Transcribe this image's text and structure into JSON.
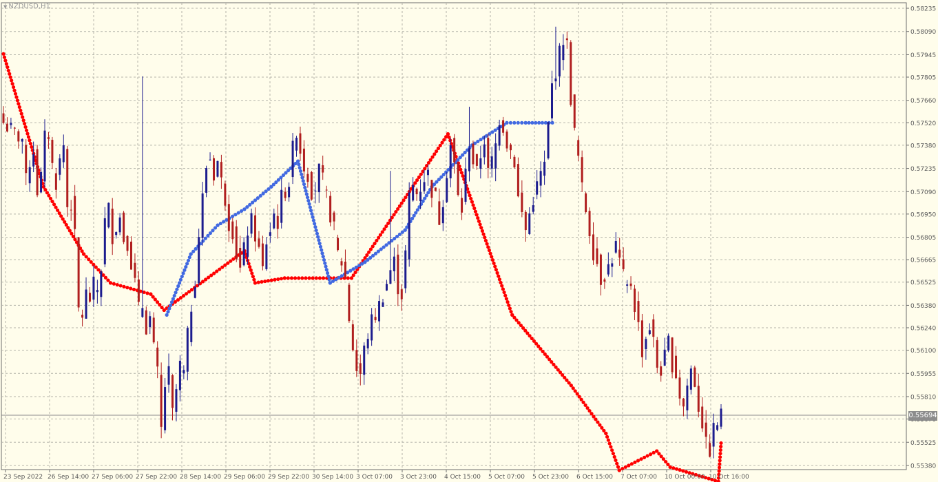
{
  "symbol": "NZDUSD,H1",
  "current_price": "0.55694",
  "colors": {
    "background": "#fffdeb",
    "grid": "#b4b4aa",
    "bull_candle": "#1c1c8e",
    "bear_candle": "#b01e1e",
    "sar_down": "#ff0000",
    "sar_up": "#4169e1",
    "axis_text": "#5a5a5a",
    "price_tag": "#8c8c8c"
  },
  "chart_data": {
    "type": "candlestick",
    "title": "NZDUSD,H1",
    "timeframe": "H1",
    "ylim": [
      0.5538,
      0.58235
    ],
    "y_ticks": [
      "0.58235",
      "0.58090",
      "0.57945",
      "0.57805",
      "0.57660",
      "0.57520",
      "0.57380",
      "0.57235",
      "0.57090",
      "0.56950",
      "0.56805",
      "0.56665",
      "0.56525",
      "0.56380",
      "0.56240",
      "0.56100",
      "0.55955",
      "0.55810",
      "0.55670",
      "0.55525",
      "0.55380"
    ],
    "x_ticks": [
      "23 Sep 2022",
      "26 Sep 14:00",
      "27 Sep 06:00",
      "27 Sep 22:00",
      "28 Sep 14:00",
      "29 Sep 06:00",
      "29 Sep 22:00",
      "30 Sep 14:00",
      "3 Oct 07:00",
      "3 Oct 23:00",
      "4 Oct 15:00",
      "5 Oct 07:00",
      "5 Oct 23:00",
      "6 Oct 15:00",
      "7 Oct 07:00",
      "10 Oct 00:00",
      "10 Oct 16:00"
    ],
    "grid": true,
    "current_price": 0.55694,
    "series": [
      {
        "name": "",
        "type": "candlestick",
        "close_path": [
          [
            0,
            0.5752
          ],
          [
            3,
            0.5745
          ],
          [
            5,
            0.5742
          ],
          [
            6,
            0.5715
          ],
          [
            7,
            0.5728
          ],
          [
            8,
            0.5735
          ],
          [
            9,
            0.571
          ],
          [
            10,
            0.5718
          ],
          [
            11,
            0.5742
          ],
          [
            12,
            0.5745
          ],
          [
            13,
            0.5725
          ],
          [
            14,
            0.5715
          ],
          [
            15,
            0.5728
          ],
          [
            16,
            0.5738
          ],
          [
            17,
            0.57
          ],
          [
            18,
            0.5702
          ],
          [
            19,
            0.568
          ],
          [
            20,
            0.5635
          ],
          [
            21,
            0.5632
          ],
          [
            22,
            0.5645
          ],
          [
            23,
            0.5642
          ],
          [
            24,
            0.565
          ],
          [
            25,
            0.5648
          ],
          [
            26,
            0.5662
          ],
          [
            27,
            0.569
          ],
          [
            28,
            0.5698
          ],
          [
            29,
            0.5682
          ],
          [
            30,
            0.5688
          ],
          [
            31,
            0.5693
          ],
          [
            32,
            0.568
          ],
          [
            33,
            0.5678
          ],
          [
            34,
            0.5665
          ],
          [
            35,
            0.5652
          ],
          [
            36,
            0.5635
          ],
          [
            37,
            0.5638
          ],
          [
            38,
            0.5625
          ],
          [
            39,
            0.563
          ],
          [
            40,
            0.561
          ],
          [
            41,
            0.5595
          ],
          [
            42,
            0.556
          ],
          [
            43,
            0.5588
          ],
          [
            44,
            0.5595
          ],
          [
            45,
            0.557
          ],
          [
            46,
            0.5585
          ],
          [
            47,
            0.56
          ],
          [
            48,
            0.5595
          ],
          [
            49,
            0.5618
          ],
          [
            50,
            0.5638
          ],
          [
            51,
            0.5655
          ],
          [
            52,
            0.5682
          ],
          [
            53,
            0.5705
          ],
          [
            54,
            0.5725
          ],
          [
            55,
            0.573
          ],
          [
            56,
            0.572
          ],
          [
            57,
            0.5728
          ],
          [
            58,
            0.5715
          ],
          [
            59,
            0.5705
          ],
          [
            60,
            0.569
          ],
          [
            61,
            0.5685
          ],
          [
            62,
            0.567
          ],
          [
            63,
            0.566
          ],
          [
            64,
            0.5672
          ],
          [
            65,
            0.5685
          ],
          [
            66,
            0.569
          ],
          [
            67,
            0.5682
          ],
          [
            68,
            0.5672
          ],
          [
            69,
            0.566
          ],
          [
            70,
            0.5678
          ],
          [
            71,
            0.5685
          ],
          [
            72,
            0.5695
          ],
          [
            73,
            0.569
          ],
          [
            74,
            0.5705
          ],
          [
            75,
            0.571
          ],
          [
            76,
            0.5715
          ],
          [
            77,
            0.5735
          ],
          [
            78,
            0.5748
          ],
          [
            79,
            0.5735
          ],
          [
            80,
            0.5725
          ],
          [
            81,
            0.572
          ],
          [
            82,
            0.571
          ],
          [
            83,
            0.5712
          ],
          [
            84,
            0.5722
          ],
          [
            85,
            0.5715
          ],
          [
            86,
            0.5705
          ],
          [
            87,
            0.5695
          ],
          [
            88,
            0.5685
          ],
          [
            89,
            0.567
          ],
          [
            90,
            0.5665
          ],
          [
            91,
            0.5655
          ],
          [
            92,
            0.563
          ],
          [
            93,
            0.5612
          ],
          [
            94,
            0.5598
          ],
          [
            95,
            0.5595
          ],
          [
            96,
            0.561
          ],
          [
            97,
            0.562
          ],
          [
            98,
            0.5628
          ],
          [
            99,
            0.5632
          ],
          [
            100,
            0.5638
          ],
          [
            101,
            0.5645
          ],
          [
            102,
            0.5652
          ],
          [
            103,
            0.566
          ],
          [
            104,
            0.5665
          ],
          [
            105,
            0.565
          ],
          [
            106,
            0.5645
          ],
          [
            107,
            0.567
          ],
          [
            108,
            0.5705
          ],
          [
            109,
            0.5712
          ],
          [
            110,
            0.5708
          ],
          [
            111,
            0.5712
          ],
          [
            112,
            0.5718
          ],
          [
            113,
            0.572
          ],
          [
            114,
            0.571
          ],
          [
            115,
            0.5705
          ],
          [
            116,
            0.5692
          ],
          [
            117,
            0.5705
          ],
          [
            118,
            0.5722
          ],
          [
            119,
            0.5738
          ],
          [
            120,
            0.5725
          ],
          [
            121,
            0.5705
          ],
          [
            122,
            0.5698
          ],
          [
            123,
            0.572
          ],
          [
            124,
            0.574
          ],
          [
            125,
            0.5728
          ],
          [
            126,
            0.572
          ],
          [
            127,
            0.5732
          ],
          [
            128,
            0.5742
          ],
          [
            129,
            0.572
          ],
          [
            130,
            0.5728
          ],
          [
            131,
            0.5738
          ],
          [
            132,
            0.5755
          ],
          [
            133,
            0.575
          ],
          [
            134,
            0.574
          ],
          [
            135,
            0.5735
          ],
          [
            136,
            0.5728
          ],
          [
            137,
            0.5705
          ],
          [
            138,
            0.5695
          ],
          [
            139,
            0.5685
          ],
          [
            140,
            0.5695
          ],
          [
            141,
            0.5705
          ],
          [
            142,
            0.5712
          ],
          [
            143,
            0.572
          ],
          [
            144,
            0.5725
          ],
          [
            145,
            0.575
          ],
          [
            146,
            0.5775
          ],
          [
            147,
            0.5785
          ],
          [
            148,
            0.5795
          ],
          [
            149,
            0.5805
          ],
          [
            150,
            0.58
          ],
          [
            151,
            0.5768
          ],
          [
            152,
            0.5745
          ],
          [
            153,
            0.573
          ],
          [
            154,
            0.571
          ],
          [
            155,
            0.5698
          ],
          [
            156,
            0.5685
          ],
          [
            157,
            0.5672
          ],
          [
            158,
            0.5665
          ],
          [
            159,
            0.5655
          ],
          [
            160,
            0.5658
          ],
          [
            161,
            0.5662
          ],
          [
            162,
            0.5668
          ],
          [
            163,
            0.5675
          ],
          [
            164,
            0.5665
          ],
          [
            165,
            0.5655
          ],
          [
            166,
            0.5648
          ],
          [
            167,
            0.5652
          ],
          [
            168,
            0.5638
          ],
          [
            169,
            0.5625
          ],
          [
            170,
            0.561
          ],
          [
            171,
            0.5618
          ],
          [
            172,
            0.5625
          ],
          [
            173,
            0.5615
          ],
          [
            174,
            0.56
          ],
          [
            175,
            0.5598
          ],
          [
            176,
            0.5605
          ],
          [
            177,
            0.5615
          ],
          [
            178,
            0.5602
          ],
          [
            179,
            0.5595
          ],
          [
            180,
            0.5582
          ],
          [
            181,
            0.5575
          ],
          [
            182,
            0.5588
          ],
          [
            183,
            0.5598
          ],
          [
            184,
            0.559
          ],
          [
            185,
            0.5575
          ],
          [
            186,
            0.5565
          ],
          [
            187,
            0.555
          ],
          [
            188,
            0.5548
          ],
          [
            189,
            0.556
          ],
          [
            190,
            0.5565
          ],
          [
            191,
            0.5569
          ]
        ],
        "notable_highs": [
          [
            37,
            0.5781
          ],
          [
            103,
            0.5722
          ],
          [
            124,
            0.5762
          ],
          [
            147,
            0.5812
          ]
        ],
        "notable_lows": [
          [
            43,
            0.5558
          ],
          [
            95,
            0.5588
          ],
          [
            188,
            0.5543
          ]
        ]
      },
      {
        "name": "",
        "type": "parabolic_sar_down",
        "points": [
          [
            0,
            0.5795
          ],
          [
            15,
            0.5712
          ],
          [
            30,
            0.567
          ],
          [
            40,
            0.5652
          ],
          [
            55,
            0.5645
          ],
          [
            60,
            0.5635
          ],
          [
            90,
            0.5672
          ],
          [
            94,
            0.5652
          ],
          [
            105,
            0.5655
          ],
          [
            130,
            0.5655
          ],
          [
            166,
            0.5745
          ],
          [
            190,
            0.5632
          ],
          [
            212,
            0.5588
          ],
          [
            225,
            0.5558
          ],
          [
            230,
            0.5535
          ],
          [
            244,
            0.5547
          ],
          [
            249,
            0.5537
          ],
          [
            267,
            0.5528
          ],
          [
            268,
            0.5552
          ]
        ],
        "note_points": "x in candle index; flat SAR segments appear as horizontal runs"
      },
      {
        "name": "",
        "type": "parabolic_sar_up",
        "points": [
          [
            61,
            0.5632
          ],
          [
            70,
            0.567
          ],
          [
            80,
            0.5688
          ],
          [
            90,
            0.5698
          ],
          [
            100,
            0.5712
          ],
          [
            110,
            0.5728
          ],
          [
            122,
            0.5652
          ],
          [
            135,
            0.5665
          ],
          [
            150,
            0.5685
          ],
          [
            160,
            0.5712
          ],
          [
            175,
            0.5738
          ],
          [
            188,
            0.5752
          ],
          [
            195,
            0.5752
          ],
          [
            205,
            0.5752
          ]
        ]
      }
    ]
  }
}
